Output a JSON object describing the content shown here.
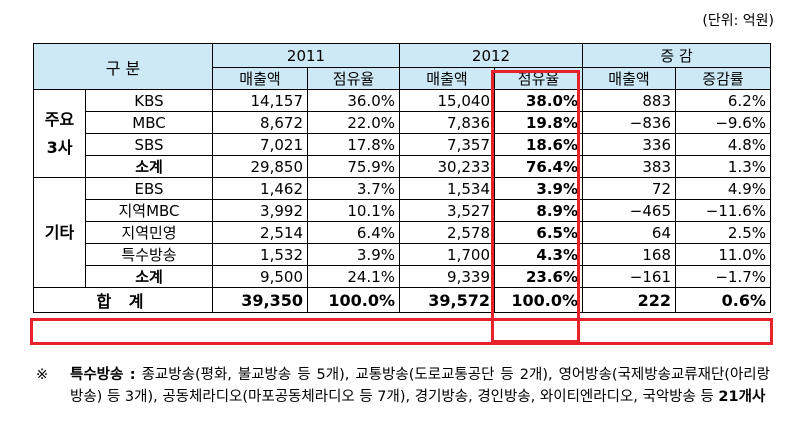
{
  "unit_label": "(단위: 억원)",
  "header": {
    "category": "구 분",
    "year1": "2011",
    "year2": "2012",
    "change": "증 감",
    "sales": "매출액",
    "share": "점유율",
    "change_rate": "증감률"
  },
  "groups": [
    {
      "name": "주요\n3사",
      "rows": [
        {
          "name": "KBS",
          "s11": "14,157",
          "p11": "36.0%",
          "s12": "15,040",
          "p12": "38.0%",
          "chg": "883",
          "rate": "6.2%"
        },
        {
          "name": "MBC",
          "s11": "8,672",
          "p11": "22.0%",
          "s12": "7,836",
          "p12": "19.8%",
          "chg": "−836",
          "rate": "−9.6%"
        },
        {
          "name": "SBS",
          "s11": "7,021",
          "p11": "17.8%",
          "s12": "7,357",
          "p12": "18.6%",
          "chg": "336",
          "rate": "4.8%"
        },
        {
          "name": "소계",
          "s11": "29,850",
          "p11": "75.9%",
          "s12": "30,233",
          "p12": "76.4%",
          "chg": "383",
          "rate": "1.3%"
        }
      ]
    },
    {
      "name": "기타",
      "rows": [
        {
          "name": "EBS",
          "s11": "1,462",
          "p11": "3.7%",
          "s12": "1,534",
          "p12": "3.9%",
          "chg": "72",
          "rate": "4.9%"
        },
        {
          "name": "지역MBC",
          "s11": "3,992",
          "p11": "10.1%",
          "s12": "3,527",
          "p12": "8.9%",
          "chg": "−465",
          "rate": "−11.6%"
        },
        {
          "name": "지역민영",
          "s11": "2,514",
          "p11": "6.4%",
          "s12": "2,578",
          "p12": "6.5%",
          "chg": "64",
          "rate": "2.5%"
        },
        {
          "name": "특수방송",
          "s11": "1,532",
          "p11": "3.9%",
          "s12": "1,700",
          "p12": "4.3%",
          "chg": "168",
          "rate": "11.0%"
        },
        {
          "name": "소계",
          "s11": "9,500",
          "p11": "24.1%",
          "s12": "9,339",
          "p12": "23.6%",
          "chg": "−161",
          "rate": "−1.7%"
        }
      ]
    }
  ],
  "total": {
    "name": "합 계",
    "s11": "39,350",
    "p11": "100.0%",
    "s12": "39,572",
    "p12": "100.0%",
    "chg": "222",
    "rate": "0.6%"
  },
  "note": {
    "mark": "※",
    "title": "특수방송 :",
    "text": " 종교방송(평화, 불교방송 등 5개), 교통방송(도로교통공단 등 2개), 영어방송(국제방송교류재단(아리랑방송) 등 3개), 공동체라디오(마포공동체라디오 등 7개), 경기방송, 경인방송, 와이티엔라디오, 국악방송 등 ",
    "count": "21개사"
  }
}
